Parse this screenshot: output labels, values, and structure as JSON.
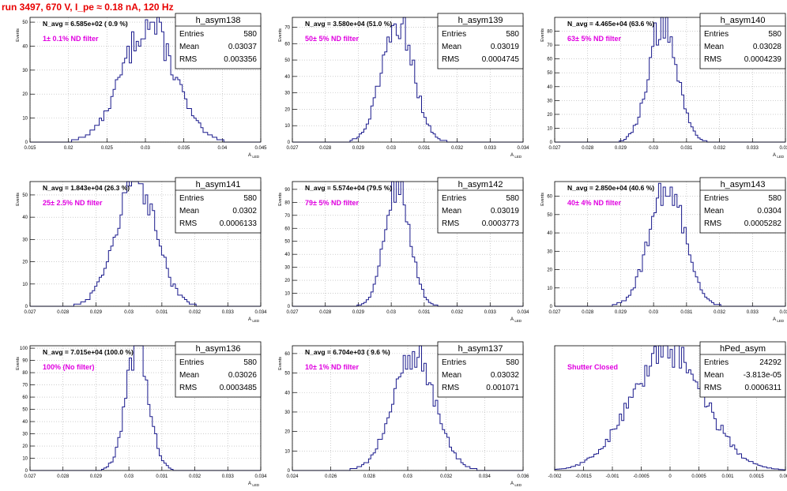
{
  "title": "run 3497,   670 V, I_pe ≈ 0.18 nA, 120 Hz",
  "stats_labels": {
    "entries": "Entries",
    "mean": "Mean",
    "rms": "RMS"
  },
  "colors": {
    "histogram": "#1a1a8c",
    "grid": "#b0b0b0",
    "annotation": "#e000e0",
    "title": "#e80000",
    "frame": "#000000"
  },
  "chart_data": [
    {
      "type": "histogram",
      "name": "h_asym138",
      "avg_label": "N_avg = 6.585e+02 ( 0.9 %)",
      "annotation": "1± 0.1% ND filter",
      "stats": {
        "entries": "580",
        "mean": "0.03037",
        "rms": "0.003356"
      },
      "xlabel": "A_LED",
      "ylabel": "Events",
      "grid": true,
      "xlim": [
        0.015,
        0.045
      ],
      "ylim": [
        0,
        52
      ],
      "xticks": [
        "0.015",
        "0.02",
        "0.025",
        "0.03",
        "0.035",
        "0.04",
        "0.045"
      ],
      "yticks": [
        "0",
        "10",
        "20",
        "30",
        "40",
        "50"
      ],
      "mean": 0.03037,
      "rms": 0.003356,
      "peak": 49,
      "nbins": 100
    },
    {
      "type": "histogram",
      "name": "h_asym139",
      "avg_label": "N_avg = 3.580e+04 (51.0 %)",
      "annotation": "50± 5% ND filter",
      "stats": {
        "entries": "580",
        "mean": "0.03019",
        "rms": "0.0004745"
      },
      "xlabel": "A_LED",
      "ylabel": "Events",
      "grid": true,
      "xlim": [
        0.027,
        0.034
      ],
      "ylim": [
        0,
        76
      ],
      "xticks": [
        "0.027",
        "0.028",
        "0.029",
        "0.03",
        "0.031",
        "0.032",
        "0.033",
        "0.034"
      ],
      "yticks": [
        "0",
        "10",
        "20",
        "30",
        "40",
        "50",
        "60",
        "70"
      ],
      "mean": 0.03019,
      "rms": 0.0004745,
      "peak": 74,
      "nbins": 100
    },
    {
      "type": "histogram",
      "name": "h_asym140",
      "avg_label": "N_avg = 4.465e+04 (63.6 %)",
      "annotation": "63± 5% ND filter",
      "stats": {
        "entries": "580",
        "mean": "0.03028",
        "rms": "0.0004239"
      },
      "xlabel": "A_LED",
      "ylabel": "Events",
      "grid": true,
      "xlim": [
        0.027,
        0.034
      ],
      "ylim": [
        0,
        90
      ],
      "xticks": [
        "0.027",
        "0.028",
        "0.029",
        "0.03",
        "0.031",
        "0.032",
        "0.033",
        "0.034"
      ],
      "yticks": [
        "0",
        "10",
        "20",
        "30",
        "40",
        "50",
        "60",
        "70",
        "80"
      ],
      "mean": 0.03028,
      "rms": 0.0004239,
      "peak": 88,
      "nbins": 100
    },
    {
      "type": "histogram",
      "name": "h_asym141",
      "avg_label": "N_avg = 1.843e+04 (26.3 %)",
      "annotation": "25± 2.5% ND filter",
      "stats": {
        "entries": "580",
        "mean": "0.0302",
        "rms": "0.0006133"
      },
      "xlabel": "A_LED",
      "ylabel": "Events",
      "grid": true,
      "xlim": [
        0.027,
        0.034
      ],
      "ylim": [
        0,
        56
      ],
      "xticks": [
        "0.027",
        "0.028",
        "0.029",
        "0.03",
        "0.031",
        "0.032",
        "0.033",
        "0.034"
      ],
      "yticks": [
        "0",
        "10",
        "20",
        "30",
        "40",
        "50"
      ],
      "mean": 0.0302,
      "rms": 0.0006133,
      "peak": 56,
      "nbins": 100
    },
    {
      "type": "histogram",
      "name": "h_asym142",
      "avg_label": "N_avg = 5.574e+04 (79.5 %)",
      "annotation": "79± 5% ND filter",
      "stats": {
        "entries": "580",
        "mean": "0.03019",
        "rms": "0.0003773"
      },
      "xlabel": "A_LED",
      "ylabel": "Events",
      "grid": true,
      "xlim": [
        0.027,
        0.034
      ],
      "ylim": [
        0,
        96
      ],
      "xticks": [
        "0.027",
        "0.028",
        "0.029",
        "0.03",
        "0.031",
        "0.032",
        "0.033",
        "0.034"
      ],
      "yticks": [
        "0",
        "10",
        "20",
        "30",
        "40",
        "50",
        "60",
        "70",
        "80",
        "90"
      ],
      "mean": 0.03019,
      "rms": 0.0003773,
      "peak": 93,
      "nbins": 100
    },
    {
      "type": "histogram",
      "name": "h_asym143",
      "avg_label": "N_avg = 2.850e+04 (40.6 %)",
      "annotation": "40± 4% ND filter",
      "stats": {
        "entries": "580",
        "mean": "0.0304",
        "rms": "0.0005282"
      },
      "xlabel": "A_LED",
      "ylabel": "Events",
      "grid": true,
      "xlim": [
        0.027,
        0.034
      ],
      "ylim": [
        0,
        68
      ],
      "xticks": [
        "0.027",
        "0.028",
        "0.029",
        "0.03",
        "0.031",
        "0.032",
        "0.033",
        "0.034"
      ],
      "yticks": [
        "0",
        "10",
        "20",
        "30",
        "40",
        "50",
        "60"
      ],
      "mean": 0.0304,
      "rms": 0.0005282,
      "peak": 66,
      "nbins": 100
    },
    {
      "type": "histogram",
      "name": "h_asym136",
      "avg_label": "N_avg = 7.015e+04 (100.0 %)",
      "annotation": "100% (No filter)",
      "stats": {
        "entries": "580",
        "mean": "0.03026",
        "rms": "0.0003485"
      },
      "xlabel": "A_LED",
      "ylabel": "Events",
      "grid": true,
      "xlim": [
        0.027,
        0.034
      ],
      "ylim": [
        0,
        102
      ],
      "xticks": [
        "0.027",
        "0.028",
        "0.029",
        "0.03",
        "0.031",
        "0.032",
        "0.033",
        "0.034"
      ],
      "yticks": [
        "0",
        "10",
        "20",
        "30",
        "40",
        "50",
        "60",
        "70",
        "80",
        "90",
        "100"
      ],
      "mean": 0.03026,
      "rms": 0.0003485,
      "peak": 100,
      "nbins": 100
    },
    {
      "type": "histogram",
      "name": "h_asym137",
      "avg_label": "N_avg = 6.704e+03 ( 9.6 %)",
      "annotation": "10± 1% ND filter",
      "stats": {
        "entries": "580",
        "mean": "0.03032",
        "rms": "0.001071"
      },
      "xlabel": "A_LED",
      "ylabel": "Events",
      "grid": true,
      "xlim": [
        0.024,
        0.036
      ],
      "ylim": [
        0,
        64
      ],
      "xticks": [
        "0.024",
        "0.026",
        "0.028",
        "0.03",
        "0.032",
        "0.034",
        "0.036"
      ],
      "yticks": [
        "0",
        "10",
        "20",
        "30",
        "40",
        "50",
        "60"
      ],
      "mean": 0.03032,
      "rms": 0.001071,
      "peak": 60,
      "nbins": 100
    },
    {
      "type": "histogram",
      "name": "hPed_asym",
      "avg_label": "",
      "annotation": "Shutter Closed",
      "stats": {
        "entries": "24292",
        "mean": "-3.813e-05",
        "rms": "0.0006311"
      },
      "xlabel": "",
      "ylabel": "",
      "grid": true,
      "xlim": [
        -0.002,
        0.002
      ],
      "ylim": [
        0,
        720
      ],
      "xticks": [
        "-0.002",
        "-0.0015",
        "-0.001",
        "-0.0005",
        "0",
        "0.0005",
        "0.001",
        "0.0015",
        "0.002"
      ],
      "yticks": [],
      "mean": -3.81e-05,
      "rms": 0.0006311,
      "peak": 700,
      "nbins": 100
    }
  ]
}
